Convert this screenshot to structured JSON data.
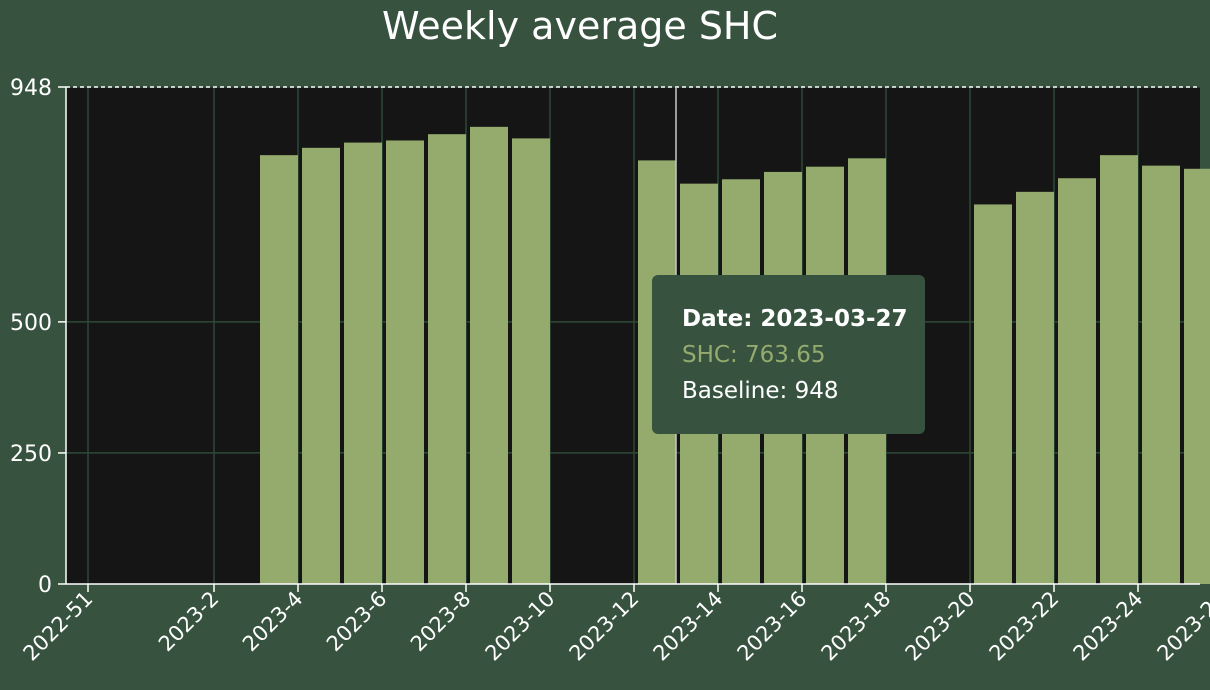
{
  "chart_data": {
    "type": "bar",
    "title": "Weekly average SHC",
    "xlabel": "",
    "ylabel": "",
    "ylim": [
      0,
      948
    ],
    "yticks": [
      "0",
      "250",
      "500",
      "948"
    ],
    "categories": [
      "2022-51",
      "2022-52",
      "2023-1",
      "2023-2",
      "2023-3",
      "2023-4",
      "2023-5",
      "2023-6",
      "2023-7",
      "2023-8",
      "2023-9",
      "2023-10",
      "2023-11",
      "2023-12",
      "2023-13",
      "2023-14",
      "2023-15",
      "2023-16",
      "2023-17",
      "2023-18",
      "2023-19",
      "2023-20",
      "2023-21",
      "2023-22",
      "2023-23",
      "2023-24",
      "2023-25",
      "2023-26"
    ],
    "xtick_labels": [
      "2022-51",
      "2023-2",
      "2023-4",
      "2023-6",
      "2023-8",
      "2023-10",
      "2023-12",
      "2023-14",
      "2023-16",
      "2023-18",
      "2023-20",
      "2023-22",
      "2023-24",
      "2023-26"
    ],
    "series": [
      {
        "name": "SHC",
        "color": "#95ab6e",
        "values": [
          null,
          null,
          null,
          null,
          818,
          832,
          842,
          846,
          858,
          872,
          850,
          null,
          null,
          808,
          763.65,
          772,
          786,
          796,
          812,
          null,
          null,
          724,
          748,
          774,
          818,
          798,
          792,
          742
        ]
      }
    ],
    "baseline": {
      "name": "Baseline",
      "value": 948,
      "color": "#ffffff"
    },
    "grid": true,
    "plot_background": "#151515",
    "grid_color": "#2d4a36"
  },
  "tooltip": {
    "date_text": "Date: 2023-03-27",
    "series_text": "SHC: 763.65",
    "baseline_text": "Baseline: 948"
  }
}
